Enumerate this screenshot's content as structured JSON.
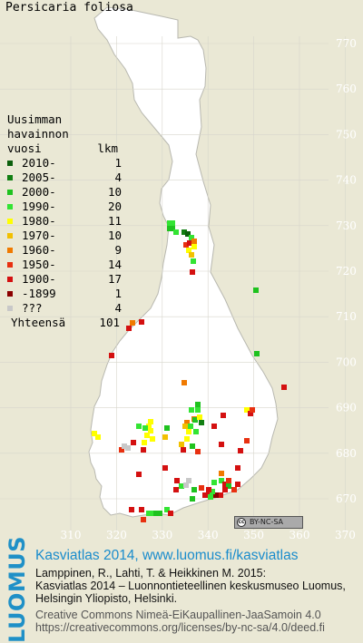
{
  "map": {
    "species": "Persicaria foliosa",
    "y_ticks": [
      "770",
      "760",
      "750",
      "740",
      "730",
      "720",
      "710",
      "700",
      "690",
      "680",
      "670"
    ],
    "x_ticks": [
      "310",
      "320",
      "330",
      "340",
      "350",
      "360",
      "370"
    ]
  },
  "legend": {
    "heading": [
      "Uusimman",
      "havainnon"
    ],
    "col_year": "vuosi",
    "col_count": "lkm",
    "rows": [
      {
        "range": "2010-",
        "count": "1",
        "color": "#0c5f0c"
      },
      {
        "range": "2005-",
        "count": "4",
        "color": "#127f12"
      },
      {
        "range": "2000-",
        "count": "10",
        "color": "#1fc21f"
      },
      {
        "range": "1990-",
        "count": "20",
        "color": "#33e433"
      },
      {
        "range": "1980-",
        "count": "11",
        "color": "#ffff00"
      },
      {
        "range": "1970-",
        "count": "10",
        "color": "#f2c000"
      },
      {
        "range": "1960-",
        "count": "9",
        "color": "#f07a00"
      },
      {
        "range": "1950-",
        "count": "14",
        "color": "#e83010"
      },
      {
        "range": "1900-",
        "count": "17",
        "color": "#d41010"
      },
      {
        "range": "-1899",
        "count": "1",
        "color": "#8b0000"
      },
      {
        "range": "???",
        "count": "4",
        "color": "#c8c8c8"
      }
    ],
    "total_label": "Yhteensä",
    "total_count": "101"
  },
  "license_badge": {
    "symbol": "cc",
    "text": "BY-NC-SA"
  },
  "footer": {
    "logo_text": "LUOMUS",
    "title_link": "Kasviatlas 2014, www.luomus.fi/kasviatlas",
    "ref_lines": [
      "Lamppinen, R., Lahti, T. & Heikkinen M. 2015:",
      "Kasviatlas 2014 – Luonnontieteellinen keskusmuseo Luomus,",
      "Helsingin Yliopisto, Helsinki."
    ],
    "license_lines": [
      "Creative Commons Nimeä-EiKaupallinen-JaaSamoin 4.0",
      "https://creativecommons.org/licenses/by-nc-sa/4.0/deed.fi"
    ]
  },
  "colors": {
    "map_bg": "#eae8d5",
    "finland_fill": "#ffffff",
    "grid": "#dadad0",
    "accent_blue": "#1a8ccc"
  }
}
